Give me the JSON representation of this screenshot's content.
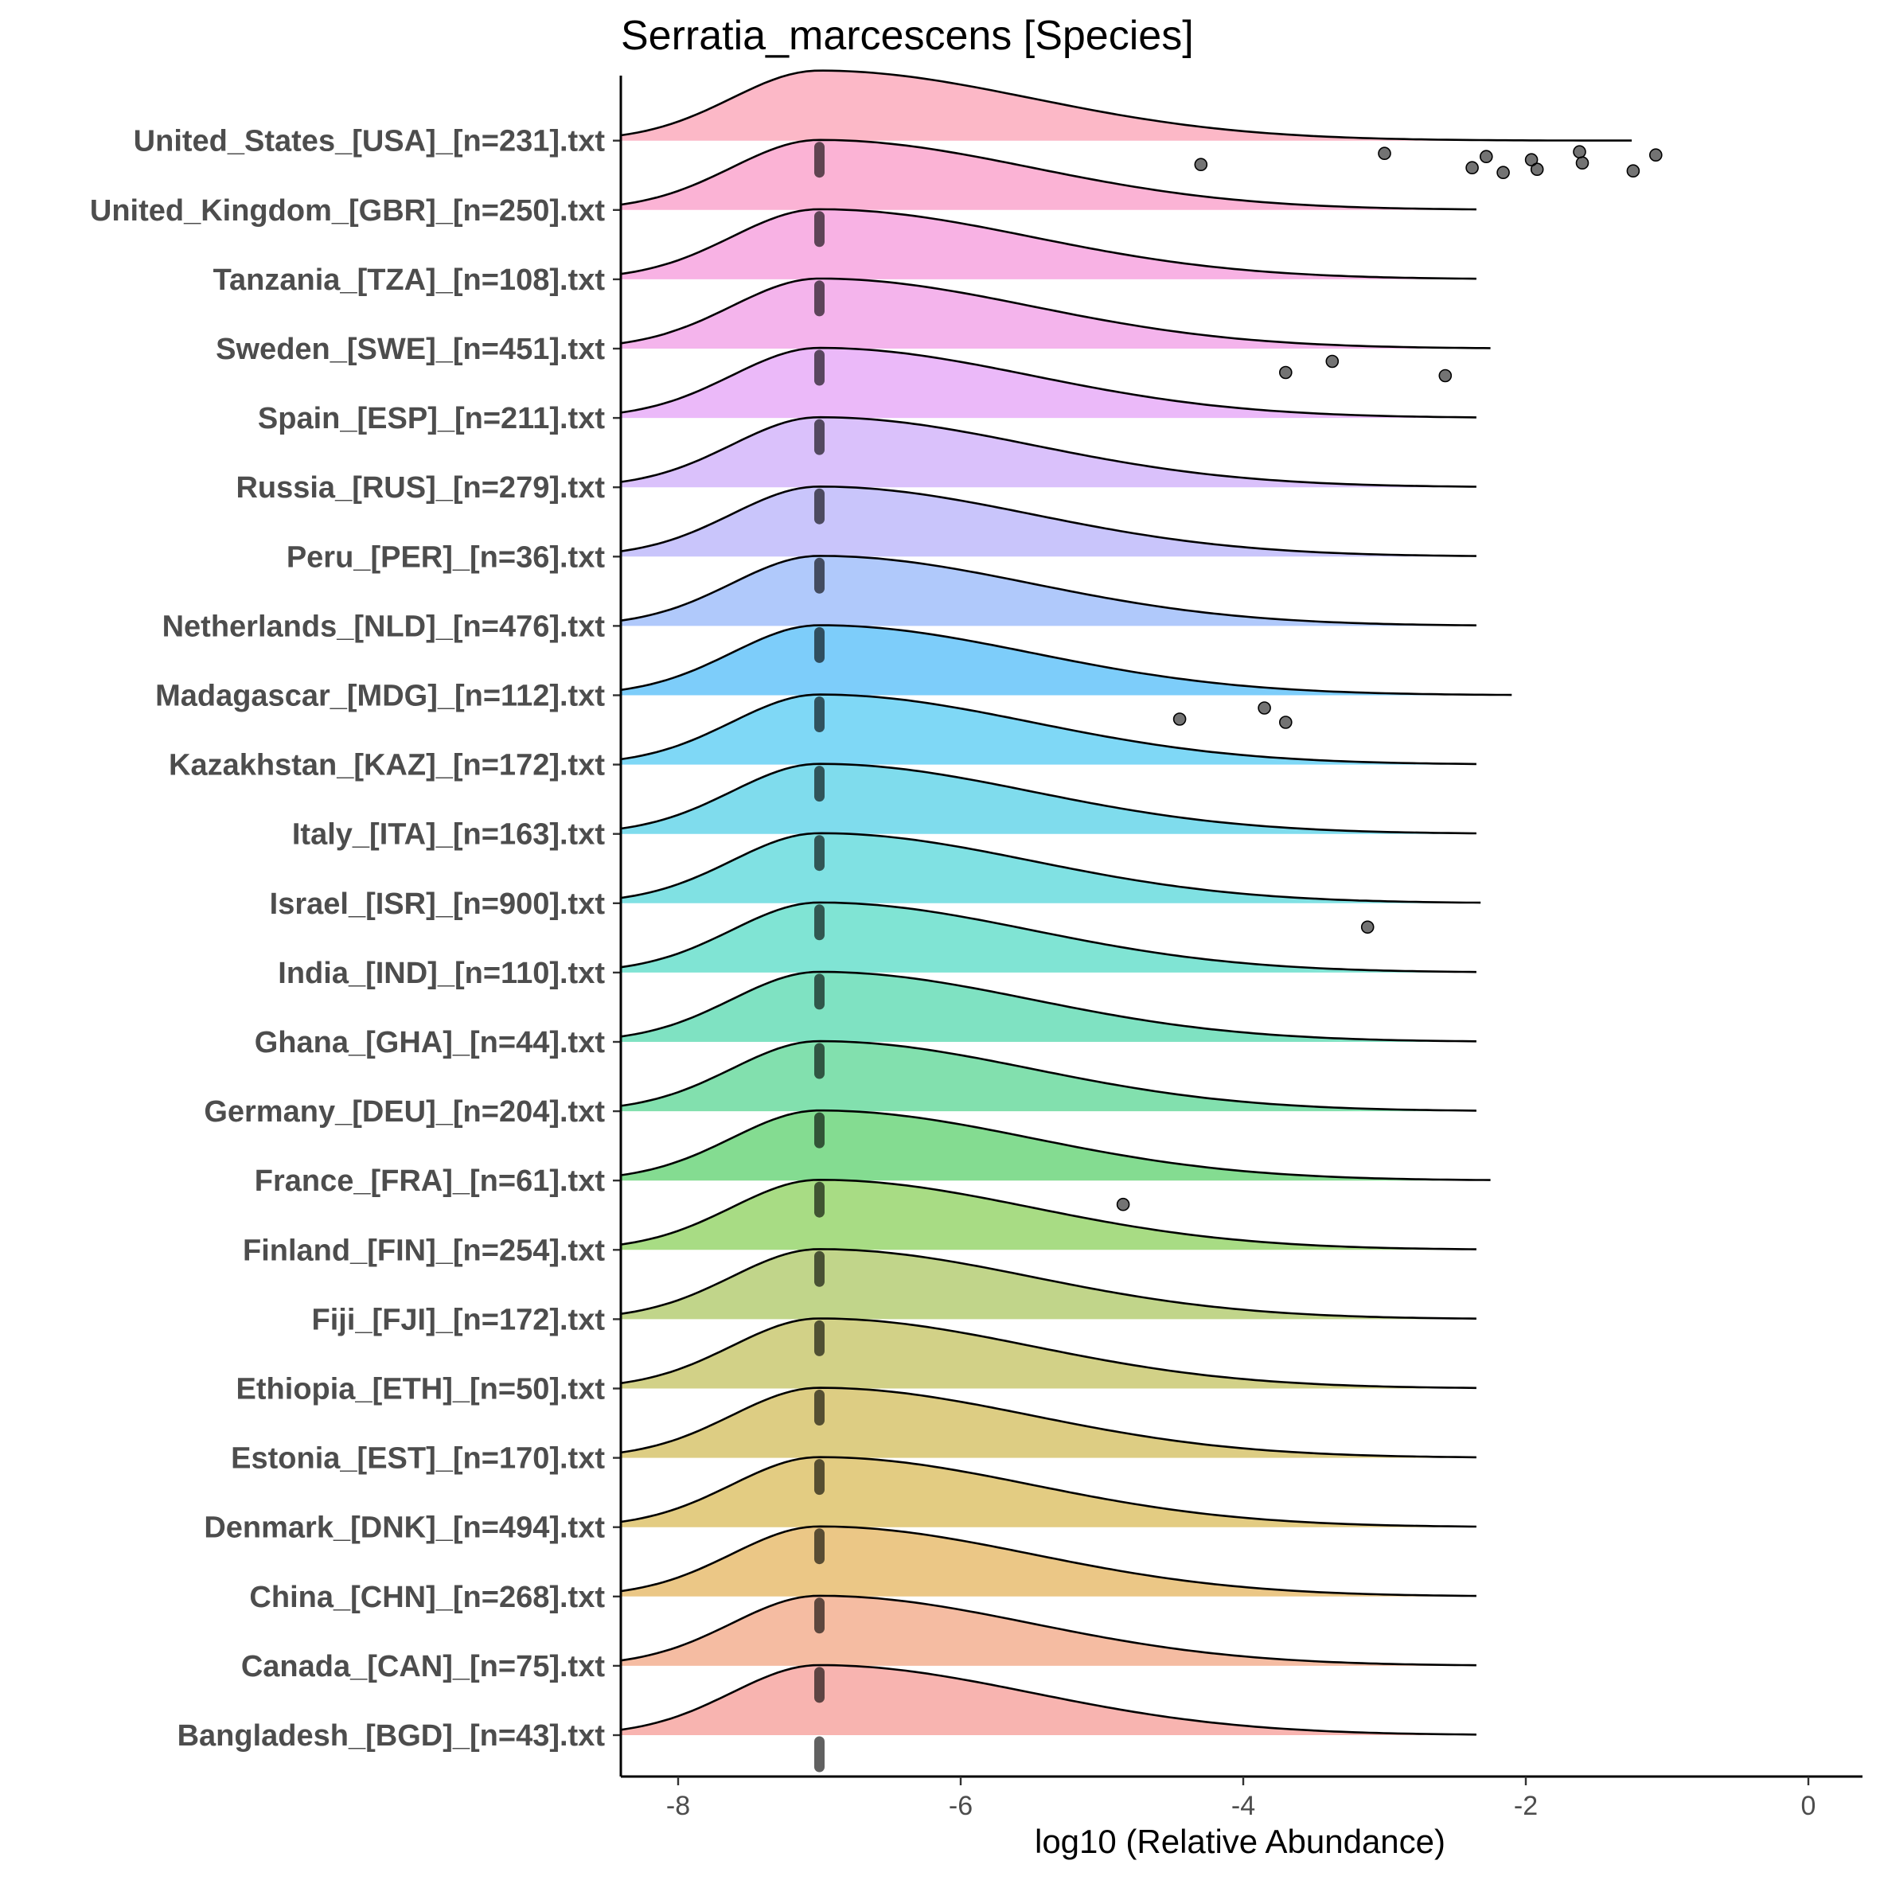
{
  "chart_data": {
    "type": "ridgeline",
    "title": "Serratia_marcescens [Species]",
    "xlabel": "log10 (Relative Abundance)",
    "xlim": [
      -8.4,
      0.4
    ],
    "xticks": [
      -8,
      -6,
      -4,
      -2,
      0
    ],
    "median_marker_x": -7,
    "density_peak_x": -7.0,
    "categories": [
      "Bangladesh_[BGD]_[n=43].txt",
      "Canada_[CAN]_[n=75].txt",
      "China_[CHN]_[n=268].txt",
      "Denmark_[DNK]_[n=494].txt",
      "Estonia_[EST]_[n=170].txt",
      "Ethiopia_[ETH]_[n=50].txt",
      "Fiji_[FJI]_[n=172].txt",
      "Finland_[FIN]_[n=254].txt",
      "France_[FRA]_[n=61].txt",
      "Germany_[DEU]_[n=204].txt",
      "Ghana_[GHA]_[n=44].txt",
      "India_[IND]_[n=110].txt",
      "Israel_[ISR]_[n=900].txt",
      "Italy_[ITA]_[n=163].txt",
      "Kazakhstan_[KAZ]_[n=172].txt",
      "Madagascar_[MDG]_[n=112].txt",
      "Netherlands_[NLD]_[n=476].txt",
      "Peru_[PER]_[n=36].txt",
      "Russia_[RUS]_[n=279].txt",
      "Spain_[ESP]_[n=211].txt",
      "Sweden_[SWE]_[n=451].txt",
      "Tanzania_[TZA]_[n=108].txt",
      "United_Kingdom_[GBR]_[n=250].txt",
      "United_States_[USA]_[n=231].txt"
    ],
    "fill_colors": [
      "#f8b4b0",
      "#f5bca2",
      "#ebc786",
      "#e3cc82",
      "#ddcd83",
      "#d2d187",
      "#c1d58a",
      "#a8dc84",
      "#84dc91",
      "#82e0ae",
      "#7fe2c2",
      "#80e4d4",
      "#80e1e3",
      "#7fdced",
      "#7fd8f6",
      "#7dcdfa",
      "#b0c9fb",
      "#c9c5fb",
      "#dac1fb",
      "#ebb9f9",
      "#f4b4ec",
      "#f8b2e4",
      "#fbb3d5",
      "#fcb8c7"
    ],
    "density_end_x": [
      -2.35,
      -2.35,
      -2.35,
      -2.35,
      -2.35,
      -2.35,
      -2.35,
      -2.35,
      -2.25,
      -2.35,
      -2.35,
      -2.35,
      -2.32,
      -2.35,
      -2.35,
      -2.1,
      -2.35,
      -2.35,
      -2.35,
      -2.35,
      -2.25,
      -2.35,
      -2.35,
      -1.25
    ],
    "outliers": [
      {
        "category": "United_States_[USA]_[n=231].txt",
        "x": [
          -4.3,
          -3.0,
          -2.38,
          -2.28,
          -2.16,
          -1.96,
          -1.92,
          -1.62,
          -1.6,
          -1.24,
          -1.08
        ]
      },
      {
        "category": "Sweden_[SWE]_[n=451].txt",
        "x": [
          -3.7,
          -3.37,
          -2.57
        ]
      },
      {
        "category": "Madagascar_[MDG]_[n=112].txt",
        "x": [
          -4.45,
          -3.85,
          -3.7
        ]
      },
      {
        "category": "Israel_[ISR]_[n=900].txt",
        "x": [
          -3.12
        ]
      },
      {
        "category": "France_[FRA]_[n=61].txt",
        "x": [
          -4.85
        ]
      }
    ]
  }
}
